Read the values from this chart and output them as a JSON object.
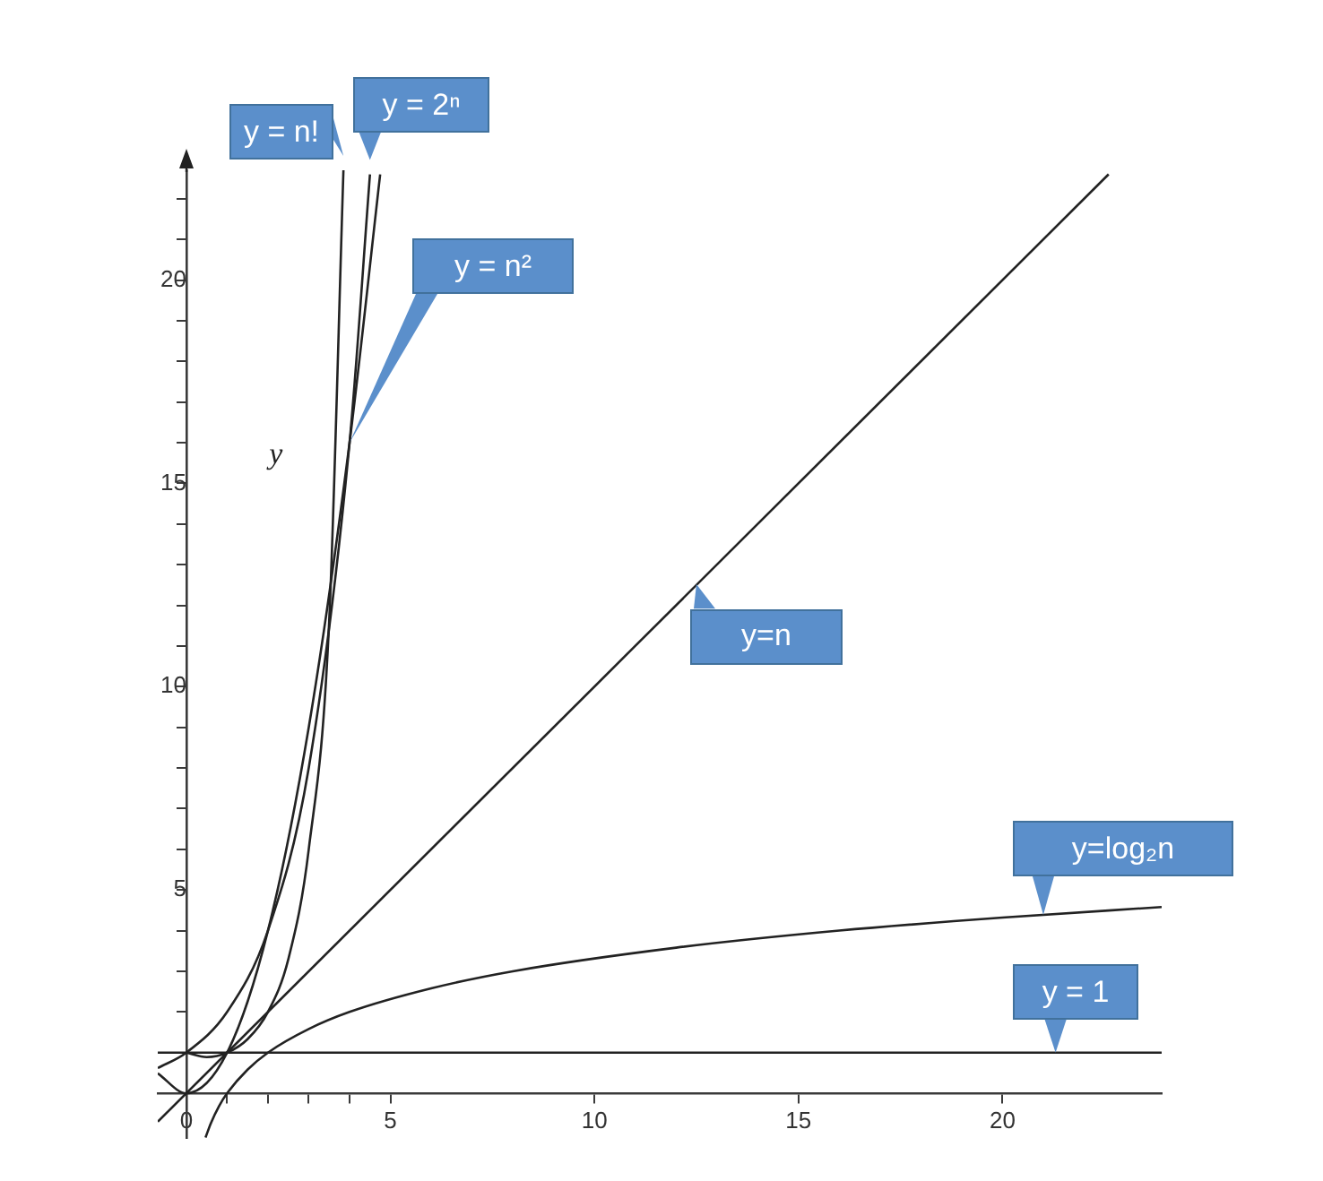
{
  "chart_data": {
    "type": "line",
    "ylabel": "y",
    "xlim": [
      -0.7,
      23.9
    ],
    "ylim": [
      -1.1,
      22.7
    ],
    "xticks": [
      {
        "value": 1,
        "label": null
      },
      {
        "value": 2,
        "label": null
      },
      {
        "value": 3,
        "label": null
      },
      {
        "value": 4,
        "label": null
      },
      0,
      5,
      10,
      15,
      20
    ],
    "yticks": [
      {
        "value": 1,
        "label": null
      },
      {
        "value": 2,
        "label": null
      },
      {
        "value": 3,
        "label": null
      },
      {
        "value": 4,
        "label": null
      },
      5,
      {
        "value": 6,
        "label": null
      },
      {
        "value": 7,
        "label": null
      },
      {
        "value": 8,
        "label": null
      },
      {
        "value": 9,
        "label": null
      },
      10,
      {
        "value": 11,
        "label": null
      },
      {
        "value": 12,
        "label": null
      },
      {
        "value": 13,
        "label": null
      },
      {
        "value": 14,
        "label": null
      },
      15,
      {
        "value": 16,
        "label": null
      },
      {
        "value": 17,
        "label": null
      },
      {
        "value": 18,
        "label": null
      },
      {
        "value": 19,
        "label": null
      },
      20,
      {
        "value": 21,
        "label": null
      },
      {
        "value": 22,
        "label": null
      }
    ],
    "grid": false,
    "legend": false,
    "marker": "none",
    "line_style": "solid",
    "series": [
      {
        "name": "y = n!",
        "color": "#222222",
        "x": [
          0,
          0.5,
          1,
          1.5,
          2,
          2.5,
          3,
          3.5,
          3.85
        ],
        "values": [
          1,
          0.89,
          1,
          1.33,
          2,
          3.3,
          6,
          11.6,
          22.7
        ]
      },
      {
        "name": "y = 2ⁿ",
        "color": "#222222",
        "x": [
          -0.7,
          0,
          1,
          2,
          3,
          4,
          4.5
        ],
        "values": [
          0.62,
          1,
          2,
          4,
          8,
          16,
          22.6
        ]
      },
      {
        "name": "y = n²",
        "color": "#222222",
        "x": [
          -0.7,
          0,
          1,
          2,
          3,
          4,
          4.75
        ],
        "values": [
          0.49,
          0,
          1,
          4,
          9,
          16,
          22.6
        ]
      },
      {
        "name": "y=n",
        "color": "#222222",
        "x": [
          -0.7,
          22.6
        ],
        "values": [
          -0.7,
          22.6
        ]
      },
      {
        "name": "y=log₂n",
        "color": "#222222",
        "x": [
          0.47,
          0.6,
          0.8,
          1,
          1.5,
          2,
          3,
          4,
          6,
          8,
          12,
          16,
          20,
          23.9
        ],
        "values": [
          -1.09,
          -0.74,
          -0.32,
          0,
          0.58,
          1,
          1.58,
          2,
          2.58,
          3,
          3.58,
          4,
          4.32,
          4.58
        ]
      },
      {
        "name": "y = 1",
        "color": "#222222",
        "x": [
          -0.7,
          23.9
        ],
        "values": [
          1,
          1
        ]
      }
    ]
  }
}
